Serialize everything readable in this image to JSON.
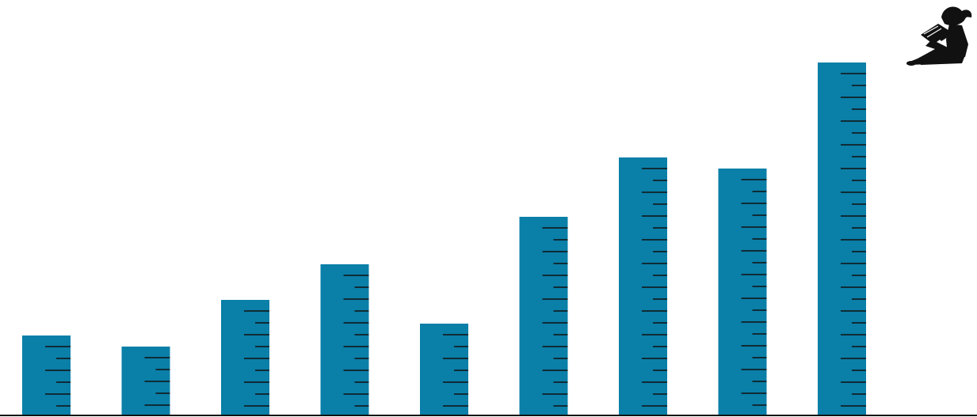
{
  "chart_data": {
    "type": "bar",
    "values": [
      101,
      87,
      146,
      191,
      116,
      251,
      326,
      312,
      446
    ],
    "ylim": [
      0,
      527
    ],
    "grid": false,
    "legend": "none",
    "tick_interval": 15,
    "bar_color": "#0a7fa8",
    "tick_color": "#111111",
    "axis_color": "#111111",
    "decoration_icon": "reading-person-icon"
  }
}
